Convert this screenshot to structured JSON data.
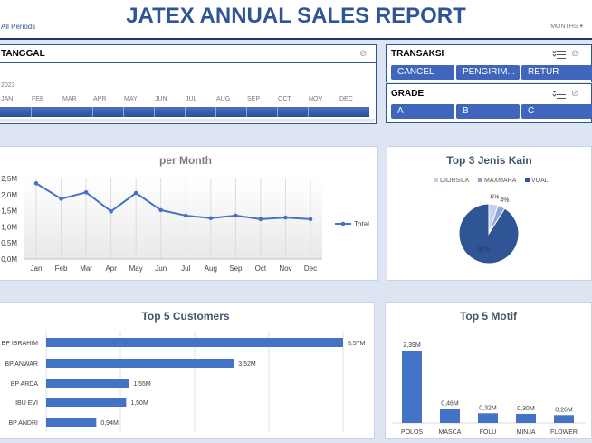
{
  "report": {
    "title": "JATEX ANNUAL SALES REPORT"
  },
  "timeline": {
    "header": "TANGGAL",
    "period": "All Periods",
    "level": "MONTHS",
    "year": "2023",
    "months": [
      "JAN",
      "FEB",
      "MAR",
      "APR",
      "MAY",
      "JUN",
      "JUL",
      "AUG",
      "SEP",
      "OCT",
      "NOV",
      "DEC"
    ]
  },
  "transaksi": {
    "header": "TRANSAKSI",
    "items": [
      "CANCEL",
      "PENGIRIM...",
      "RETUR"
    ]
  },
  "grade": {
    "header": "GRADE",
    "items": [
      "A",
      "B",
      "C"
    ]
  },
  "icons": {
    "filter": "filter-clear-icon",
    "multiselect": "multi-select-icon",
    "dropdown": "chevron-down-icon"
  },
  "colors": {
    "accent": "#2f5597",
    "bar": "#4472c4",
    "band": "#dde4f2"
  },
  "chart_data": [
    {
      "type": "line",
      "title": "per Month",
      "categories": [
        "Jan",
        "Feb",
        "Mar",
        "Apr",
        "May",
        "Jun",
        "Jul",
        "Aug",
        "Sep",
        "Oct",
        "Nov",
        "Dec"
      ],
      "series": [
        {
          "name": "Total",
          "values": [
            2.35,
            1.87,
            2.07,
            1.48,
            2.05,
            1.52,
            1.35,
            1.27,
            1.35,
            1.24,
            1.29,
            1.24
          ]
        }
      ],
      "yticks": [
        "0,0M",
        "0,5M",
        "1,0M",
        "1,5M",
        "2,0M",
        "2,5M"
      ],
      "ylim": [
        0,
        2.5
      ],
      "legend": "right",
      "grid": true
    },
    {
      "type": "pie",
      "title": "Top 3 Jenis Kain",
      "labels": [
        "DIORSILK",
        "MAXMARA",
        "VOAL"
      ],
      "values": [
        5,
        4,
        91
      ],
      "data_labels": [
        "5%",
        "4%",
        "91%"
      ],
      "colors": [
        "#c5cff0",
        "#8ea6da",
        "#2f5597"
      ],
      "legend": "top"
    },
    {
      "type": "bar",
      "orientation": "horizontal",
      "title": "Top 5 Customers",
      "categories": [
        "BP IBRAHIM",
        "BP ANWAR",
        "BP ARDA",
        "IBU EVI",
        "BP ANDRI"
      ],
      "values": [
        5.57,
        3.52,
        1.55,
        1.5,
        0.94
      ],
      "data_labels": [
        "5,57M",
        "3,52M",
        "1,55M",
        "1,50M",
        "0,94M"
      ],
      "grid": true
    },
    {
      "type": "bar",
      "title": "Top 5 Motif",
      "categories": [
        "POLOS",
        "MASCA",
        "FOLU",
        "MINJA",
        "FLOWER"
      ],
      "values": [
        2.39,
        0.46,
        0.32,
        0.3,
        0.26
      ],
      "data_labels": [
        "2,39M",
        "0,46M",
        "0,32M",
        "0,30M",
        "0,26M"
      ]
    }
  ]
}
